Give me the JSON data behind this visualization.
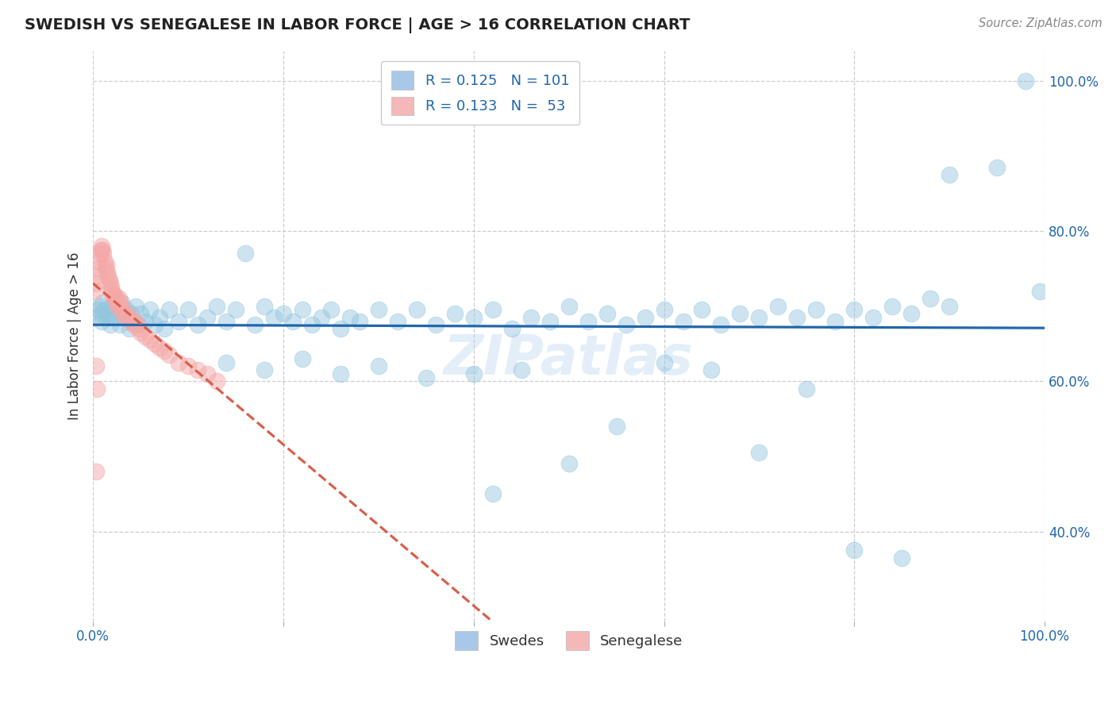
{
  "title": "SWEDISH VS SENEGALESE IN LABOR FORCE | AGE > 16 CORRELATION CHART",
  "source_text": "Source: ZipAtlas.com",
  "ylabel": "In Labor Force | Age > 16",
  "xlim": [
    0.0,
    1.0
  ],
  "ylim": [
    0.28,
    1.04
  ],
  "blue_R": 0.125,
  "blue_N": 101,
  "pink_R": 0.133,
  "pink_N": 53,
  "blue_color": "#92c5de",
  "pink_color": "#f4a9a8",
  "blue_line_color": "#2166ac",
  "pink_line_color": "#d6604d",
  "legend_label_blue": "Swedes",
  "legend_label_pink": "Senegalese",
  "watermark": "ZIPatlas",
  "background_color": "#ffffff",
  "grid_color": "#c8c8c8",
  "y_ticks_right": [
    0.4,
    0.6,
    0.8,
    1.0
  ],
  "blue_x": [
    0.005,
    0.006,
    0.007,
    0.008,
    0.009,
    0.01,
    0.012,
    0.014,
    0.016,
    0.018,
    0.02,
    0.022,
    0.025,
    0.028,
    0.03,
    0.032,
    0.035,
    0.038,
    0.04,
    0.042,
    0.045,
    0.048,
    0.05,
    0.055,
    0.06,
    0.065,
    0.07,
    0.075,
    0.08,
    0.09,
    0.1,
    0.11,
    0.12,
    0.13,
    0.14,
    0.15,
    0.16,
    0.17,
    0.18,
    0.19,
    0.2,
    0.21,
    0.22,
    0.23,
    0.24,
    0.25,
    0.26,
    0.27,
    0.28,
    0.3,
    0.32,
    0.34,
    0.36,
    0.38,
    0.4,
    0.42,
    0.44,
    0.46,
    0.48,
    0.5,
    0.52,
    0.54,
    0.56,
    0.58,
    0.6,
    0.62,
    0.64,
    0.66,
    0.68,
    0.7,
    0.72,
    0.74,
    0.76,
    0.78,
    0.8,
    0.82,
    0.84,
    0.86,
    0.88,
    0.9,
    0.14,
    0.18,
    0.22,
    0.26,
    0.3,
    0.35,
    0.4,
    0.45,
    0.5,
    0.55,
    0.6,
    0.65,
    0.7,
    0.75,
    0.8,
    0.85,
    0.9,
    0.95,
    0.98,
    0.995,
    0.42
  ],
  "blue_y": [
    0.685,
    0.695,
    0.7,
    0.69,
    0.68,
    0.705,
    0.695,
    0.685,
    0.69,
    0.675,
    0.7,
    0.685,
    0.695,
    0.675,
    0.705,
    0.685,
    0.695,
    0.67,
    0.69,
    0.68,
    0.7,
    0.675,
    0.69,
    0.68,
    0.695,
    0.675,
    0.685,
    0.67,
    0.695,
    0.68,
    0.695,
    0.675,
    0.685,
    0.7,
    0.68,
    0.695,
    0.77,
    0.675,
    0.7,
    0.685,
    0.69,
    0.68,
    0.695,
    0.675,
    0.685,
    0.695,
    0.67,
    0.685,
    0.68,
    0.695,
    0.68,
    0.695,
    0.675,
    0.69,
    0.685,
    0.695,
    0.67,
    0.685,
    0.68,
    0.7,
    0.68,
    0.69,
    0.675,
    0.685,
    0.695,
    0.68,
    0.695,
    0.675,
    0.69,
    0.685,
    0.7,
    0.685,
    0.695,
    0.68,
    0.695,
    0.685,
    0.7,
    0.69,
    0.71,
    0.7,
    0.625,
    0.615,
    0.63,
    0.61,
    0.62,
    0.605,
    0.61,
    0.615,
    0.49,
    0.54,
    0.625,
    0.615,
    0.505,
    0.59,
    0.375,
    0.365,
    0.875,
    0.885,
    1.0,
    0.72,
    0.45
  ],
  "pink_x": [
    0.002,
    0.003,
    0.004,
    0.005,
    0.006,
    0.007,
    0.008,
    0.009,
    0.01,
    0.011,
    0.012,
    0.013,
    0.014,
    0.015,
    0.016,
    0.017,
    0.018,
    0.019,
    0.02,
    0.021,
    0.022,
    0.023,
    0.024,
    0.025,
    0.026,
    0.027,
    0.028,
    0.029,
    0.03,
    0.032,
    0.034,
    0.036,
    0.038,
    0.04,
    0.042,
    0.044,
    0.046,
    0.048,
    0.05,
    0.055,
    0.06,
    0.065,
    0.07,
    0.075,
    0.08,
    0.09,
    0.1,
    0.11,
    0.12,
    0.13,
    0.003,
    0.004,
    0.003
  ],
  "pink_y": [
    0.72,
    0.73,
    0.74,
    0.75,
    0.76,
    0.77,
    0.775,
    0.78,
    0.775,
    0.77,
    0.76,
    0.75,
    0.755,
    0.745,
    0.74,
    0.735,
    0.73,
    0.725,
    0.72,
    0.715,
    0.71,
    0.715,
    0.71,
    0.705,
    0.7,
    0.71,
    0.705,
    0.7,
    0.695,
    0.69,
    0.685,
    0.69,
    0.685,
    0.68,
    0.675,
    0.68,
    0.675,
    0.67,
    0.665,
    0.66,
    0.655,
    0.65,
    0.645,
    0.64,
    0.635,
    0.625,
    0.62,
    0.615,
    0.61,
    0.6,
    0.62,
    0.59,
    0.48
  ]
}
